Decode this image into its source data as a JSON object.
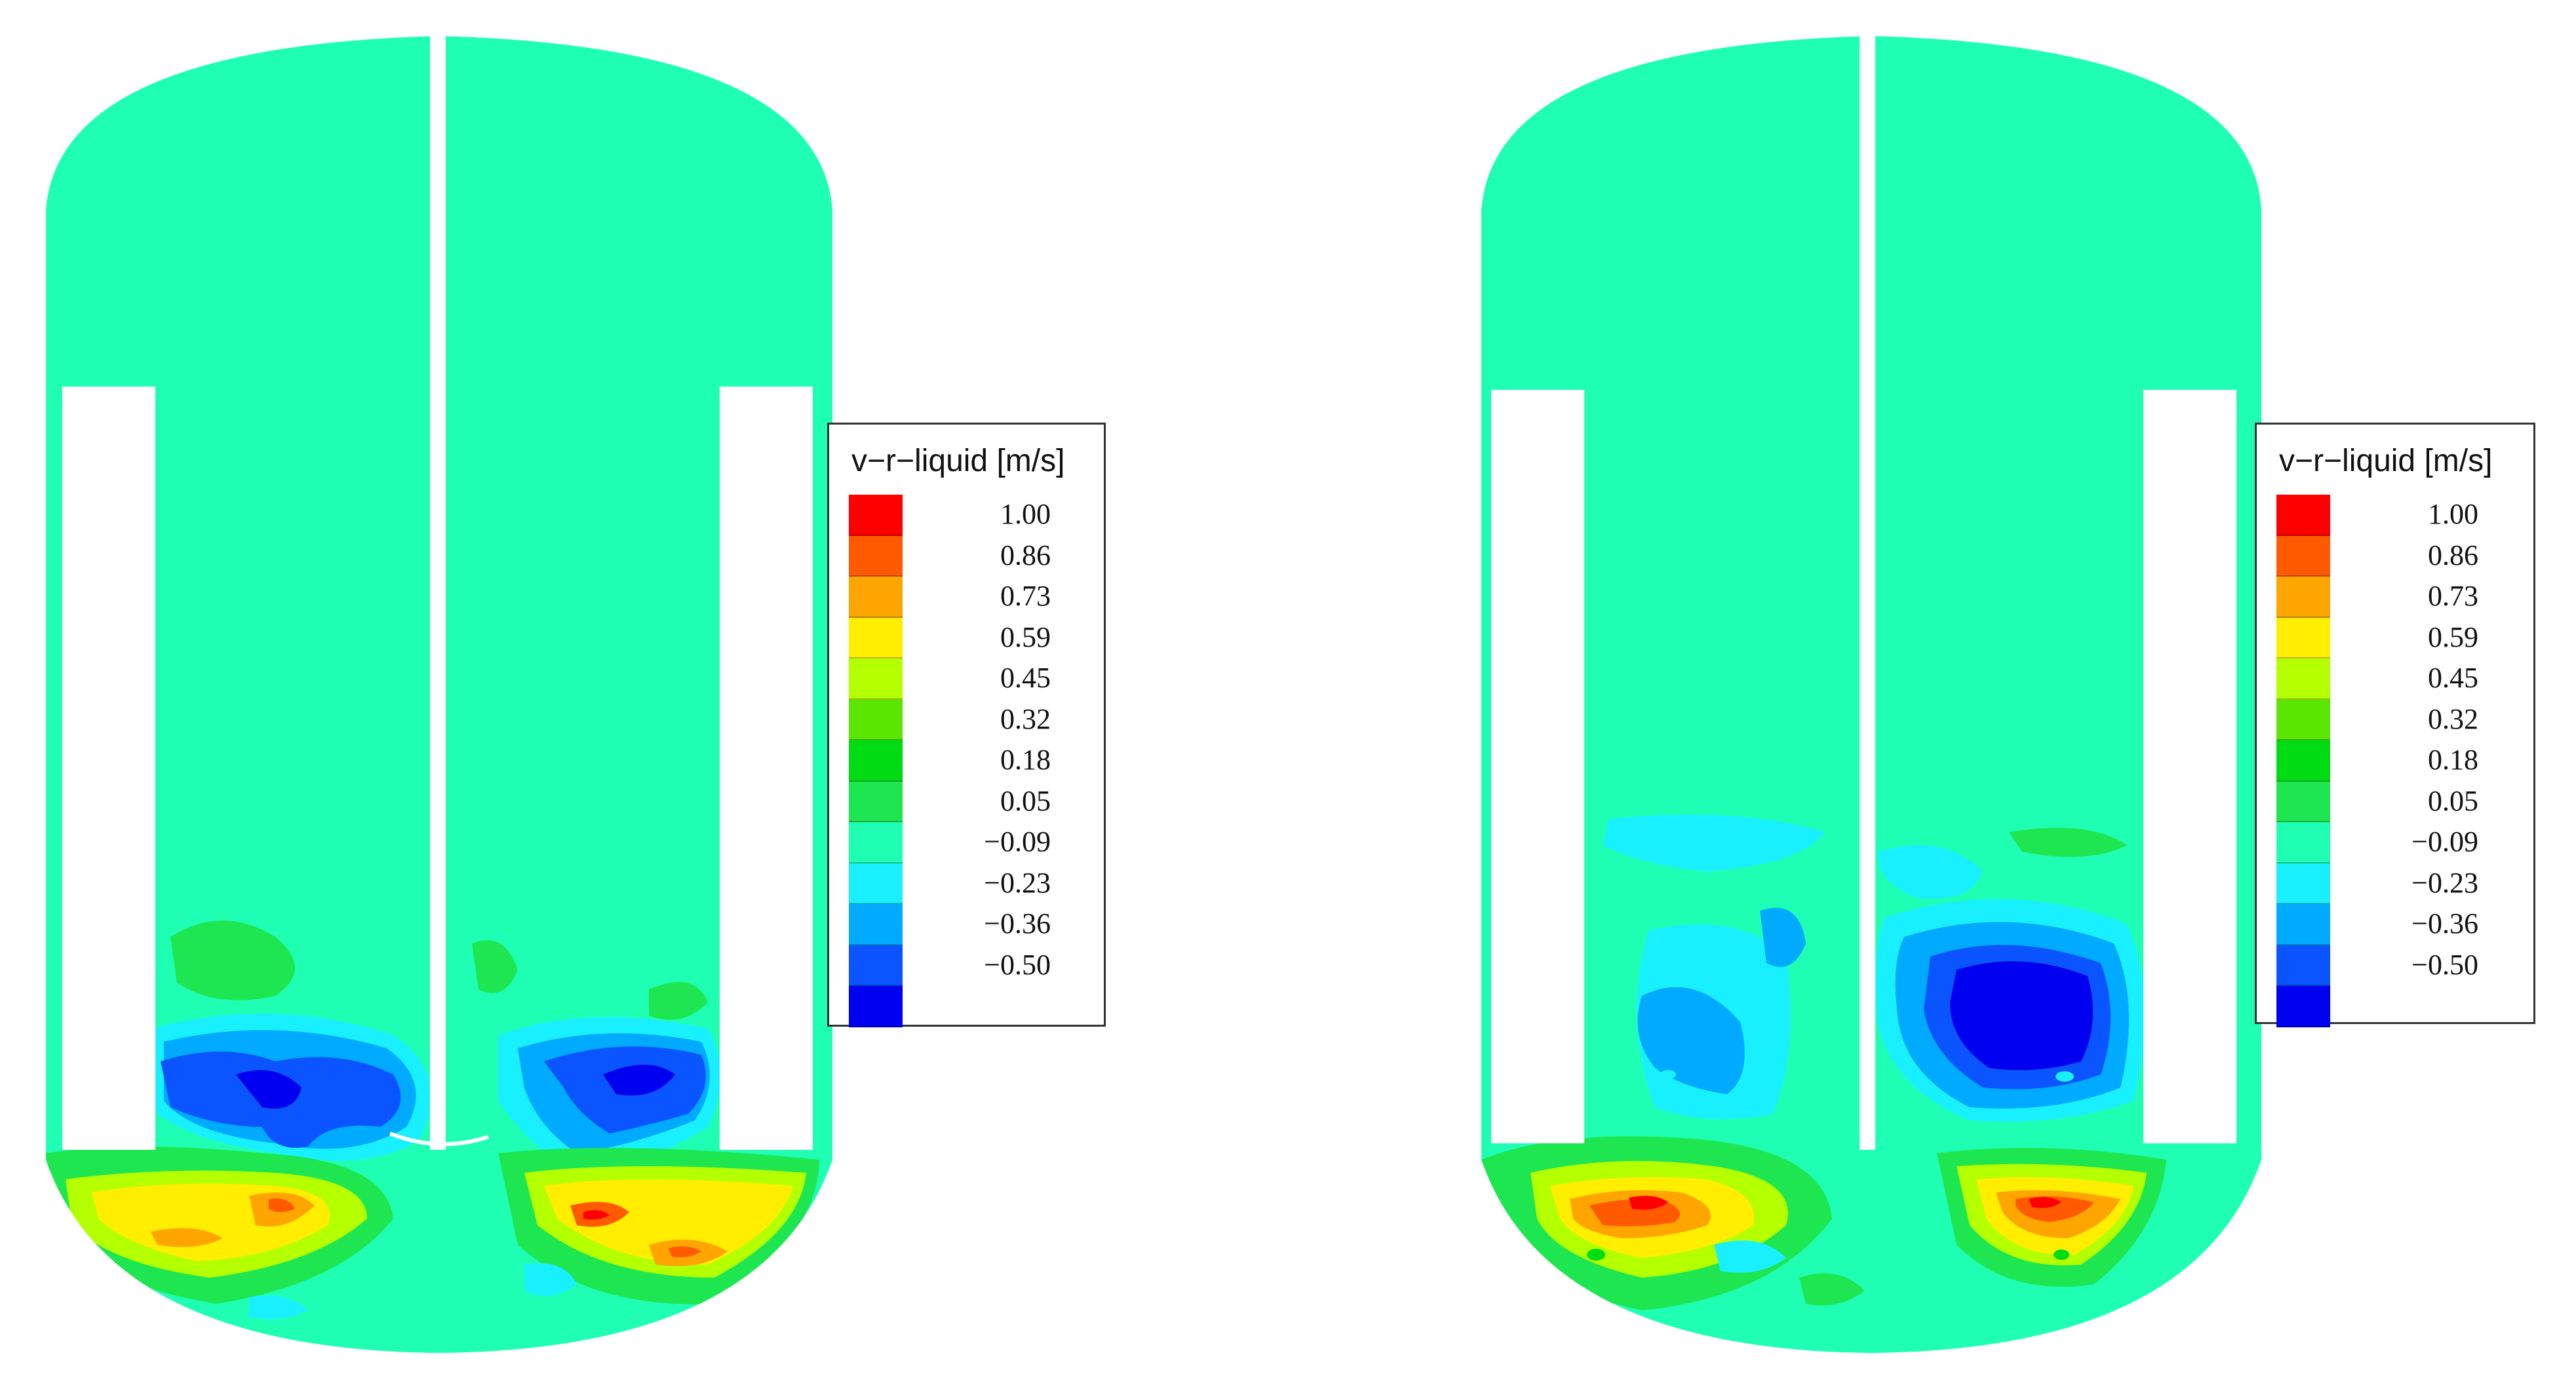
{
  "legend": {
    "title": "v−r−liquid [m/s]",
    "ticks": [
      "1.00",
      "0.86",
      "0.73",
      "0.59",
      "0.45",
      "0.32",
      "0.18",
      "0.05",
      "−0.09",
      "−0.23",
      "−0.36",
      "−0.50"
    ],
    "colors": [
      "#ff0000",
      "#ff5a00",
      "#ffa500",
      "#ffee00",
      "#b4ff00",
      "#5ae600",
      "#00dc14",
      "#1ee650",
      "#1fffb4",
      "#19f0ff",
      "#00aaff",
      "#0a55ff",
      "#0000f0"
    ]
  },
  "background_color": "#1fffb4",
  "panels": [
    {
      "name": "left-vessel"
    },
    {
      "name": "right-vessel"
    }
  ]
}
